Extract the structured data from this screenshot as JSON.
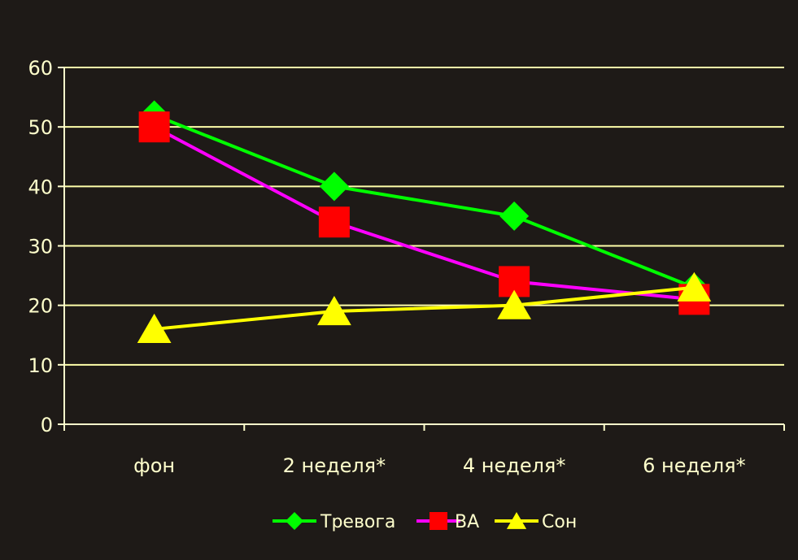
{
  "chart_data": {
    "type": "line",
    "categories": [
      "фон",
      "2 неделя*",
      "4 неделя*",
      "6 неделя*"
    ],
    "ylim": [
      0,
      60
    ],
    "yticks": [
      0,
      10,
      20,
      30,
      40,
      50,
      60
    ],
    "grid": true,
    "legend_position": "bottom",
    "series": [
      {
        "name": "Тревога",
        "values": [
          52,
          40,
          35,
          23
        ],
        "color": "#00ff00",
        "marker": "diamond"
      },
      {
        "name": "ВА",
        "values": [
          50,
          34,
          24,
          21
        ],
        "color": "#ff00ff",
        "marker_color": "#ff0000",
        "marker": "square"
      },
      {
        "name": "Сон",
        "values": [
          16,
          19,
          20,
          23
        ],
        "color": "#ffff00",
        "marker": "triangle"
      }
    ],
    "colors": {
      "background": "#1e1a17",
      "axis": "#ffffcc",
      "grid": "#ffffaa"
    }
  }
}
